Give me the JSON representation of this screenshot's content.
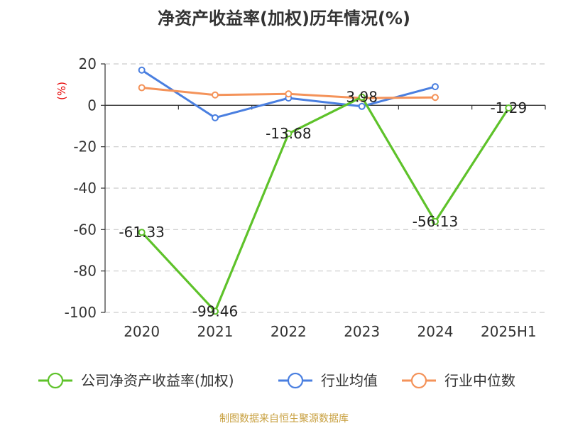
{
  "chart_data": {
    "type": "line",
    "title": "净资产收益率(加权)历年情况(%)",
    "ylabel": "(%)",
    "xlabel": "",
    "categories": [
      "2020",
      "2021",
      "2022",
      "2023",
      "2024",
      "2025H1"
    ],
    "ylim": [
      -100,
      20
    ],
    "yticks": [
      20,
      0,
      -20,
      -40,
      -60,
      -80,
      -100
    ],
    "grid": true,
    "legend_position": "bottom",
    "series": [
      {
        "name": "公司净资产收益率(加权)",
        "color": "#5ec22a",
        "values": [
          -61.33,
          -99.46,
          -13.68,
          3.98,
          -56.13,
          -1.29
        ],
        "data_labels": [
          "-61.33",
          "-99.46",
          "-13.68",
          "3.98",
          "-56.13",
          "-1.29"
        ]
      },
      {
        "name": "行业均值",
        "color": "#4a7fe0",
        "values": [
          17.0,
          -6.0,
          3.5,
          -0.5,
          9.0,
          null
        ]
      },
      {
        "name": "行业中位数",
        "color": "#f4935a",
        "values": [
          8.5,
          5.0,
          5.5,
          3.5,
          3.8,
          null
        ]
      }
    ]
  },
  "source": "制图数据来自恒生聚源数据库"
}
